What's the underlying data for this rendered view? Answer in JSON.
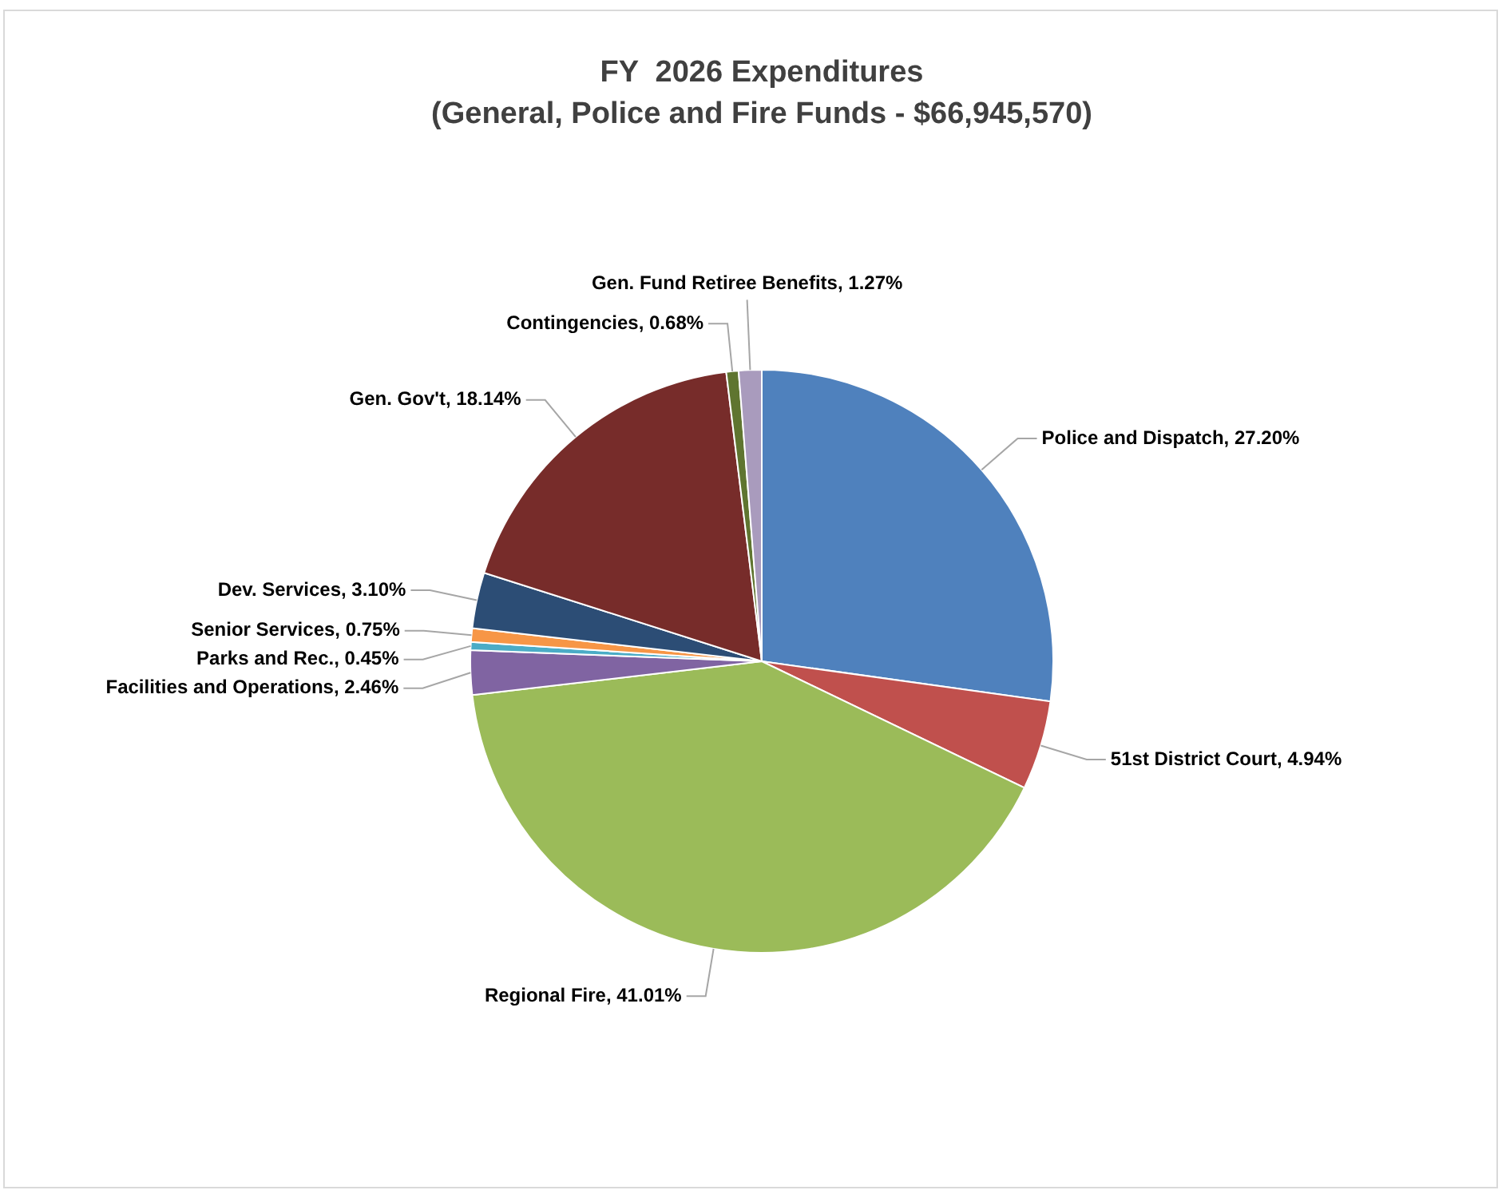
{
  "chart_data": {
    "type": "pie",
    "title": "FY  2026 Expenditures\n(General, Police and Fire Funds - $66,945,570)",
    "categories": [
      "Police and Dispatch",
      "51st District Court",
      "Regional Fire",
      "Facilities and Operations",
      "Parks and Rec.",
      "Senior Services",
      "Dev. Services",
      "Gen. Gov't",
      "Contingencies",
      "Gen. Fund Retiree Benefits"
    ],
    "values": [
      27.2,
      4.94,
      41.01,
      2.46,
      0.45,
      0.75,
      3.1,
      18.14,
      0.68,
      1.27
    ],
    "value_labels": [
      "27.20%",
      "4.94%",
      "41.01%",
      "2.46%",
      "0.45%",
      "0.75%",
      "3.10%",
      "18.14%",
      "0.68%",
      "1.27%"
    ],
    "colors": [
      "#4f81bd",
      "#c0504d",
      "#9bbb59",
      "#8064a2",
      "#4bacc6",
      "#f79646",
      "#2c4d75",
      "#772c2a",
      "#5f7530",
      "#a99bbd"
    ],
    "legend": false
  }
}
